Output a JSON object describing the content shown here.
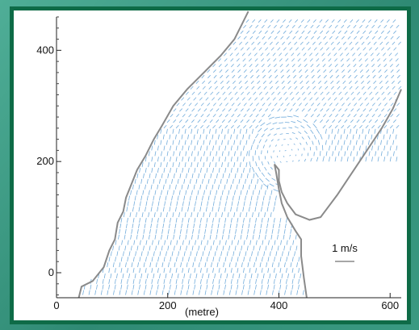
{
  "chart_data": {
    "type": "quiver",
    "title": "",
    "xlabel": "(metre)",
    "ylabel": "",
    "xlim": [
      0,
      620
    ],
    "ylim": [
      -45,
      460
    ],
    "x_ticks": [
      0,
      200,
      400,
      600
    ],
    "y_ticks": [
      0,
      200,
      400
    ],
    "x_tick_labels": [
      "0",
      "200",
      "400",
      "600"
    ],
    "y_tick_labels": [
      "0",
      "200",
      "400"
    ],
    "grid": false,
    "vector_color": "#5b9fd6",
    "boundary_color": "#8a8a8a",
    "scale_label": "1 m/s",
    "scale_vector_magnitude_m_per_s": 1,
    "eddy_center": [
      415,
      215
    ],
    "boundary_points": [
      [
        40,
        -45
      ],
      [
        45,
        -25
      ],
      [
        65,
        -15
      ],
      [
        85,
        10
      ],
      [
        95,
        40
      ],
      [
        105,
        60
      ],
      [
        110,
        90
      ],
      [
        120,
        110
      ],
      [
        125,
        135
      ],
      [
        135,
        160
      ],
      [
        145,
        185
      ],
      [
        160,
        210
      ],
      [
        175,
        240
      ],
      [
        190,
        265
      ],
      [
        210,
        300
      ],
      [
        235,
        330
      ],
      [
        265,
        360
      ],
      [
        295,
        390
      ],
      [
        320,
        420
      ],
      [
        335,
        450
      ],
      [
        345,
        470
      ]
    ],
    "boundary_points_right": [
      [
        450,
        -45
      ],
      [
        445,
        -10
      ],
      [
        440,
        30
      ],
      [
        440,
        60
      ],
      [
        430,
        75
      ],
      [
        415,
        100
      ],
      [
        405,
        125
      ],
      [
        400,
        150
      ],
      [
        395,
        180
      ],
      [
        392,
        195
      ],
      [
        400,
        185
      ],
      [
        400,
        165
      ],
      [
        405,
        145
      ],
      [
        415,
        125
      ],
      [
        430,
        105
      ],
      [
        455,
        95
      ],
      [
        475,
        100
      ],
      [
        490,
        120
      ],
      [
        505,
        140
      ],
      [
        525,
        170
      ],
      [
        545,
        200
      ],
      [
        565,
        230
      ],
      [
        585,
        260
      ],
      [
        605,
        295
      ],
      [
        620,
        330
      ]
    ]
  }
}
